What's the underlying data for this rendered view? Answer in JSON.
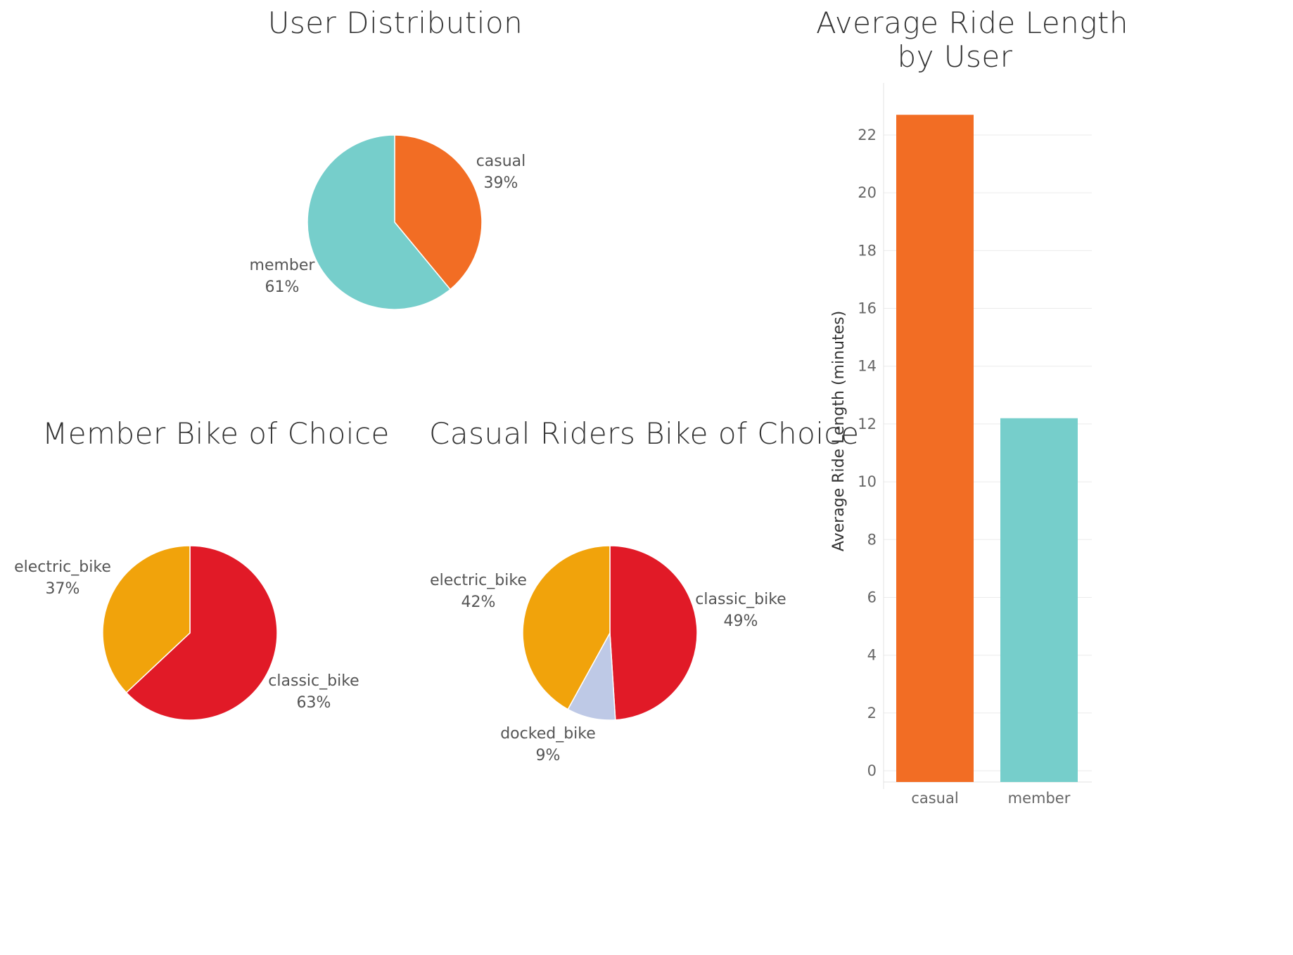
{
  "chart_data": [
    {
      "type": "pie",
      "title": "User Distribution",
      "slices": [
        {
          "label": "casual",
          "value": 39,
          "pct_label": "39%",
          "color": "#F26D24"
        },
        {
          "label": "member",
          "value": 61,
          "pct_label": "61%",
          "color": "#76CECB"
        }
      ]
    },
    {
      "type": "pie",
      "title": "Member Bike of Choice",
      "slices": [
        {
          "label": "classic_bike",
          "value": 63,
          "pct_label": "63%",
          "color": "#E11A27"
        },
        {
          "label": "electric_bike",
          "value": 37,
          "pct_label": "37%",
          "color": "#F1A30B"
        }
      ]
    },
    {
      "type": "pie",
      "title": "Casual Riders Bike of Choice",
      "slices": [
        {
          "label": "classic_bike",
          "value": 49,
          "pct_label": "49%",
          "color": "#E11A27"
        },
        {
          "label": "docked_bike",
          "value": 9,
          "pct_label": "9%",
          "color": "#BEC9E6"
        },
        {
          "label": "electric_bike",
          "value": 42,
          "pct_label": "42%",
          "color": "#F1A30B"
        }
      ]
    },
    {
      "type": "bar",
      "title_line1": "Average Ride Length",
      "title_line2": "by User",
      "categories": [
        "casual",
        "member"
      ],
      "values": [
        22.7,
        12.2
      ],
      "colors": [
        "#F26D24",
        "#76CECB"
      ],
      "ylabel": "Average Ride Length (minutes)",
      "ylim": [
        0,
        24
      ],
      "yticks": [
        0,
        2,
        4,
        6,
        8,
        10,
        12,
        14,
        16,
        18,
        20,
        22
      ],
      "grid": true
    }
  ]
}
